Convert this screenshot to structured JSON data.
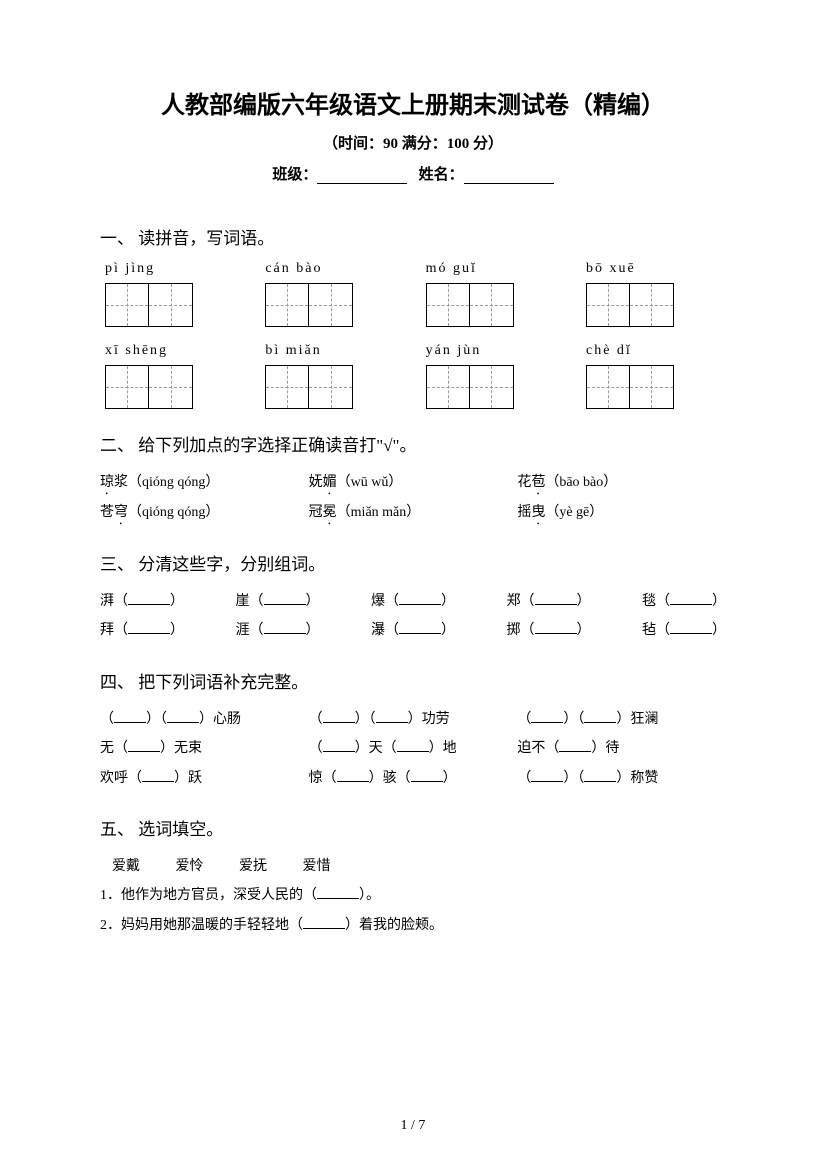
{
  "header": {
    "title": "人教部编版六年级语文上册期末测试卷（精编）",
    "subtitle": "（时间：90   满分：100 分）",
    "class_label": "班级：",
    "name_label": "姓名："
  },
  "q1": {
    "heading": "一、 读拼音，写词语。",
    "row1": [
      "pì   jìng",
      "cán   bào",
      "mó   guǐ",
      "bō   xuē"
    ],
    "row2": [
      "xī   shēng",
      "bì   miǎn",
      "yán   jùn",
      "chè   dǐ"
    ]
  },
  "q2": {
    "heading": "二、 给下列加点的字选择正确读音打\"√\"。",
    "items": [
      {
        "pre": "",
        "char": "琼",
        "post": "浆（qióng  qóng）"
      },
      {
        "pre": "妩",
        "char": "媚",
        "post": "（wū wǔ）"
      },
      {
        "pre": "花",
        "char": "苞",
        "post": "（bāo  bào）"
      },
      {
        "pre": "苍",
        "char": "穹",
        "post": "（qióng  qóng）"
      },
      {
        "pre": "冠",
        "char": "冕",
        "post": "（miǎn  mǎn）"
      },
      {
        "pre": "摇",
        "char": "曳",
        "post": "（yè  gē）"
      }
    ]
  },
  "q3": {
    "heading": "三、 分清这些字，分别组词。",
    "line1": [
      "湃",
      "崖",
      "爆",
      "郑",
      "毯"
    ],
    "line2": [
      "拜",
      "涯",
      "瀑",
      "掷",
      "毡"
    ]
  },
  "q4": {
    "heading": "四、 把下列词语补充完整。",
    "items": [
      [
        "（__）（__）心肠",
        "（__）（__）功劳",
        "（__）（__）狂澜"
      ],
      [
        "无（__）无束",
        "（__）天（__）地",
        "迫不（__）待"
      ],
      [
        "欢呼（__）跃",
        "惊（__）骇（__）",
        "（__）（__）称赞"
      ]
    ]
  },
  "q5": {
    "heading": "五、 选词填空。",
    "words": [
      "爱戴",
      "爱怜",
      "爱抚",
      "爱惜"
    ],
    "s1": "1．他作为地方官员，深受人民的（",
    "s1b": "）。",
    "s2": "2．妈妈用她那温暖的手轻轻地（",
    "s2b": "）着我的脸颊。"
  },
  "footer": {
    "page": "1 / 7"
  }
}
